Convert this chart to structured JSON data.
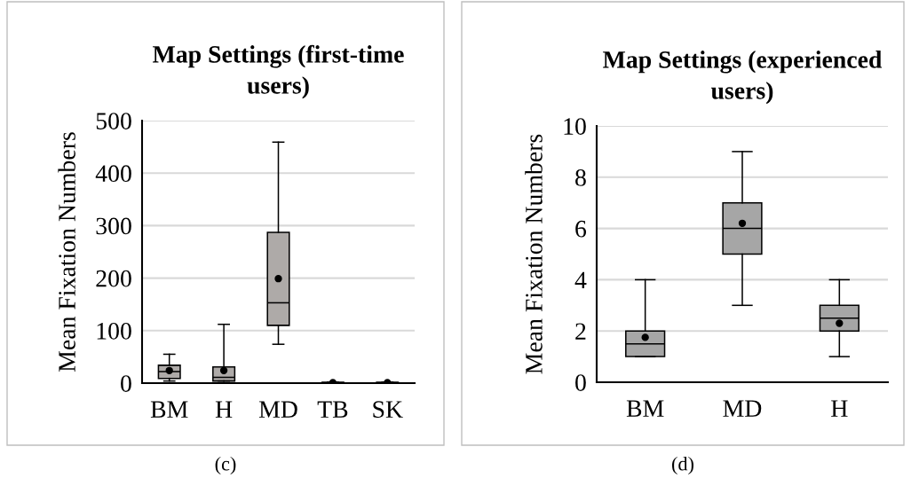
{
  "chart_data": [
    {
      "type": "box",
      "title": "Map Settings (first-time\nusers)",
      "ylabel": "Mean Fixation Numbers",
      "categories": [
        "BM",
        "H",
        "MD",
        "TB",
        "SK"
      ],
      "color": "#aeaaa8",
      "ylim": [
        0,
        500
      ],
      "yticks": [
        0,
        100,
        200,
        300,
        400,
        500
      ],
      "grid": "y",
      "annotations": [
        "(c)"
      ],
      "boxes": [
        {
          "low": 4,
          "q1": 9,
          "median": 22,
          "q3": 34,
          "high": 55,
          "mean": 24
        },
        {
          "low": 4,
          "q1": 4,
          "median": 11,
          "q3": 31,
          "high": 112,
          "mean": 24
        },
        {
          "low": 74,
          "q1": 110,
          "median": 153,
          "q3": 287,
          "high": 459,
          "mean": 199
        },
        {
          "low": 0,
          "q1": 0.5,
          "median": 1,
          "q3": 1.5,
          "high": 2,
          "mean": 1
        },
        {
          "low": 0,
          "q1": 0.5,
          "median": 1,
          "q3": 1.5,
          "high": 2,
          "mean": 1
        }
      ]
    },
    {
      "type": "box",
      "title": "Map Settings (experienced\nusers)",
      "ylabel": "Mean Fixation Numbers",
      "categories": [
        "BM",
        "MD",
        "H"
      ],
      "color": "#a6a6a6",
      "ylim": [
        0,
        10
      ],
      "yticks": [
        0,
        2,
        4,
        6,
        8,
        10
      ],
      "grid": "y",
      "annotations": [
        "(d)"
      ],
      "boxes": [
        {
          "low": 1,
          "q1": 1,
          "median": 1.5,
          "q3": 2,
          "high": 4,
          "mean": 1.75
        },
        {
          "low": 3,
          "q1": 5,
          "median": 6,
          "q3": 7,
          "high": 9,
          "mean": 6.2
        },
        {
          "low": 1,
          "q1": 2,
          "median": 2.5,
          "q3": 3,
          "high": 4,
          "mean": 2.3
        }
      ]
    }
  ]
}
